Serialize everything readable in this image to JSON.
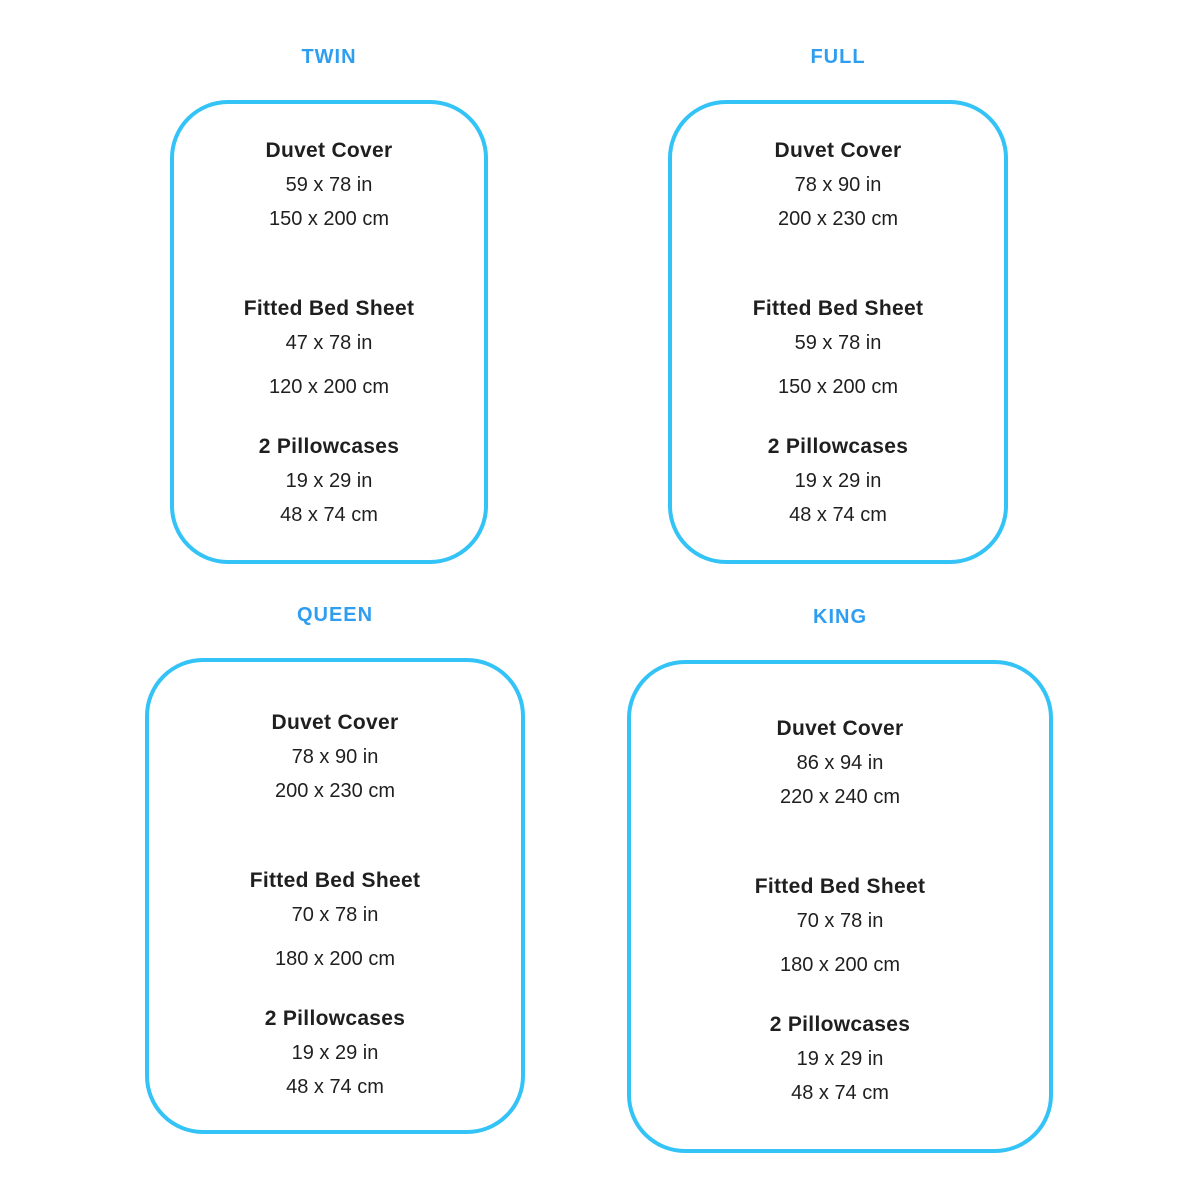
{
  "style": {
    "title_color": "#2f9ef0",
    "border_color": "#33c3f7",
    "text_color": "#1f1f1f",
    "background": "#ffffff"
  },
  "panels": [
    {
      "id": "twin",
      "label": "TWIN",
      "items": [
        {
          "name": "Duvet Cover",
          "inches": "59 x 78 in",
          "cm": "150 x 200 cm"
        },
        {
          "name": "Fitted Bed Sheet",
          "inches": "47 x 78 in",
          "cm": "120 x 200 cm"
        },
        {
          "name": "2 Pillowcases",
          "inches": "19 x 29 in",
          "cm": "48 x 74 cm"
        }
      ]
    },
    {
      "id": "full",
      "label": "FULL",
      "items": [
        {
          "name": "Duvet Cover",
          "inches": "78 x 90 in",
          "cm": "200 x 230 cm"
        },
        {
          "name": "Fitted Bed Sheet",
          "inches": "59 x 78 in",
          "cm": "150 x 200 cm"
        },
        {
          "name": "2 Pillowcases",
          "inches": "19 x 29 in",
          "cm": "48 x 74 cm"
        }
      ]
    },
    {
      "id": "queen",
      "label": "QUEEN",
      "items": [
        {
          "name": "Duvet Cover",
          "inches": "78 x 90 in",
          "cm": "200 x 230 cm"
        },
        {
          "name": "Fitted Bed Sheet",
          "inches": "70 x 78 in",
          "cm": "180 x 200 cm"
        },
        {
          "name": "2 Pillowcases",
          "inches": "19 x 29 in",
          "cm": "48 x 74 cm"
        }
      ]
    },
    {
      "id": "king",
      "label": "KING",
      "items": [
        {
          "name": "Duvet Cover",
          "inches": "86 x 94 in",
          "cm": "220 x 240 cm"
        },
        {
          "name": "Fitted Bed Sheet",
          "inches": "70 x 78 in",
          "cm": "180 x 200 cm"
        },
        {
          "name": "2 Pillowcases",
          "inches": "19 x 29 in",
          "cm": "48 x 74 cm"
        }
      ]
    }
  ]
}
